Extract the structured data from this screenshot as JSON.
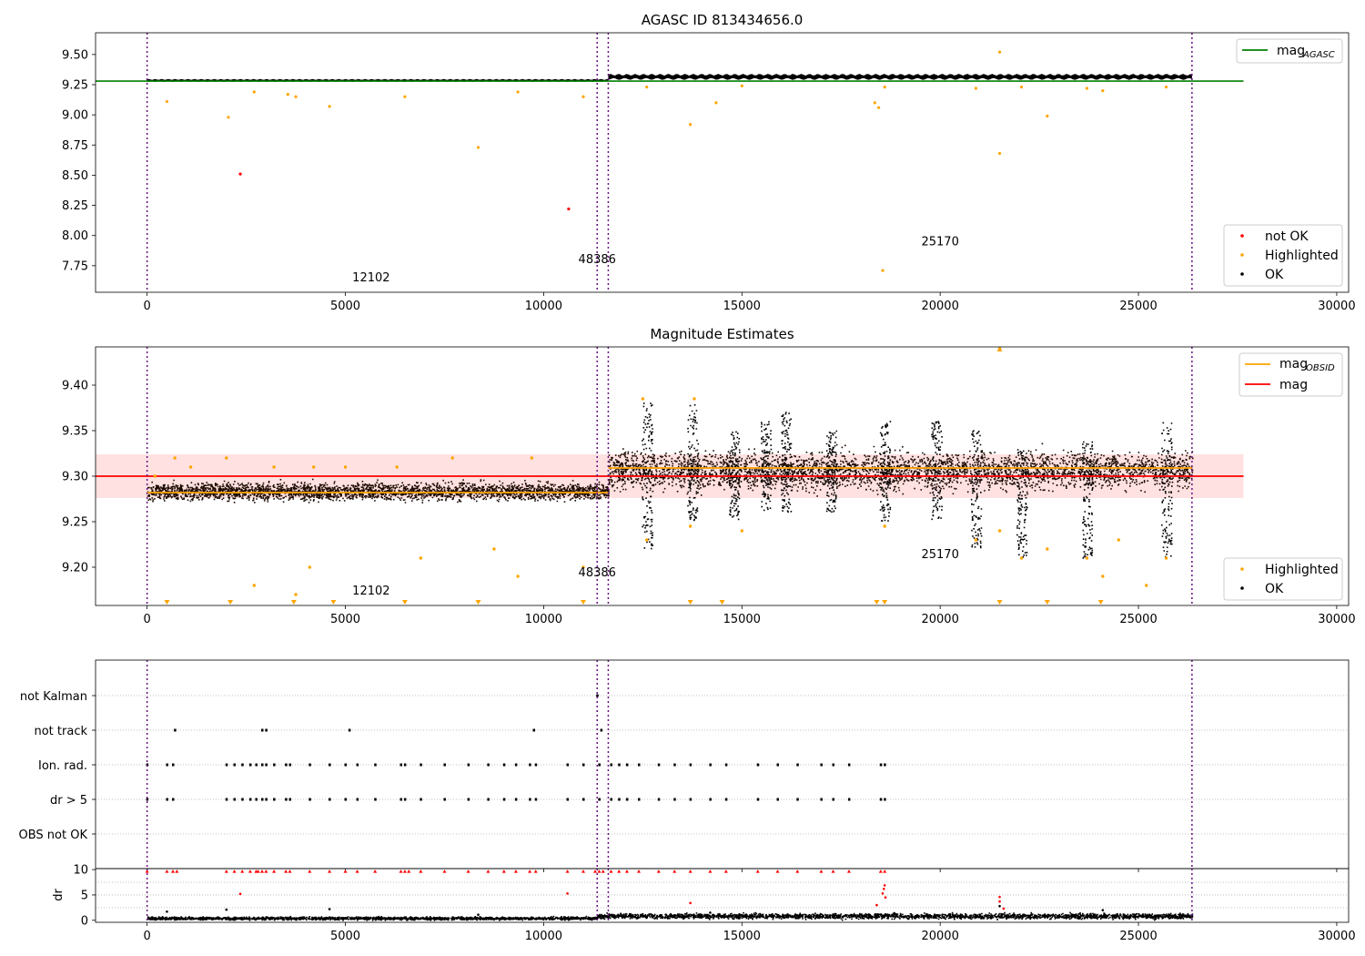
{
  "chart_data": [
    {
      "type": "scatter",
      "title": "AGASC ID 813434656.0",
      "xlim": [
        -1300,
        30300
      ],
      "ylim": [
        7.53,
        9.68
      ],
      "xticks": [
        0,
        5000,
        10000,
        15000,
        20000,
        25000,
        30000
      ],
      "yticks": [
        7.75,
        8.0,
        8.25,
        8.5,
        8.75,
        9.0,
        9.25,
        9.5
      ],
      "ytick_labels": [
        "7.75",
        "8.00",
        "8.25",
        "8.50",
        "8.75",
        "9.00",
        "9.25",
        "9.50"
      ],
      "vlines": [
        0,
        11350,
        11630,
        26350
      ],
      "line_series": [
        {
          "name": "mag_AGASC",
          "label_base": "mag",
          "label_sub": "AGASC",
          "color": "#008000",
          "y": 9.28,
          "x": [
            -1300,
            27650
          ]
        }
      ],
      "bands": [
        {
          "x": [
            0,
            11630
          ],
          "center": 9.285,
          "halfwidth": 0.012,
          "color": "#000000"
        },
        {
          "x": [
            11630,
            26350
          ],
          "center": 9.315,
          "halfwidth": 0.025,
          "color": "#000000"
        }
      ],
      "series": [
        {
          "name": "not OK",
          "color": "#ff0000",
          "points": [
            [
              2350,
              8.51
            ],
            [
              10630,
              8.22
            ]
          ]
        },
        {
          "name": "Highlighted",
          "color": "#ffa500",
          "points": [
            [
              500,
              9.11
            ],
            [
              2050,
              8.98
            ],
            [
              2700,
              9.19
            ],
            [
              3550,
              9.17
            ],
            [
              3750,
              9.15
            ],
            [
              4600,
              9.07
            ],
            [
              6500,
              9.15
            ],
            [
              8350,
              8.73
            ],
            [
              9350,
              9.19
            ],
            [
              11000,
              9.15
            ],
            [
              13700,
              8.92
            ],
            [
              14350,
              9.1
            ],
            [
              18350,
              9.1
            ],
            [
              18450,
              9.06
            ],
            [
              18550,
              7.71
            ],
            [
              21500,
              9.52
            ],
            [
              21500,
              8.68
            ],
            [
              22700,
              8.99
            ],
            [
              24100,
              9.2
            ],
            [
              12600,
              9.23
            ],
            [
              15000,
              9.24
            ],
            [
              18600,
              9.23
            ],
            [
              20900,
              9.22
            ],
            [
              22050,
              9.23
            ],
            [
              23700,
              9.22
            ],
            [
              25700,
              9.23
            ]
          ]
        }
      ],
      "legends": [
        {
          "loc": "upper-right",
          "entries": [
            "mag_AGASC"
          ]
        },
        {
          "loc": "lower-right",
          "entries": [
            "not OK",
            "Highlighted",
            "OK"
          ]
        }
      ],
      "annotations": [
        {
          "text": "12102",
          "x": 5650,
          "y": 7.62
        },
        {
          "text": "48386",
          "x": 11350,
          "y": 7.77
        },
        {
          "text": "25170",
          "x": 20000,
          "y": 7.92
        }
      ]
    },
    {
      "type": "scatter",
      "title": "Magnitude Estimates",
      "xlim": [
        -1300,
        30300
      ],
      "ylim": [
        9.158,
        9.442
      ],
      "xticks": [
        0,
        5000,
        10000,
        15000,
        20000,
        25000,
        30000
      ],
      "yticks": [
        9.2,
        9.25,
        9.3,
        9.35,
        9.4
      ],
      "ytick_labels": [
        "9.20",
        "9.25",
        "9.30",
        "9.35",
        "9.40"
      ],
      "vlines": [
        0,
        11350,
        11630,
        26350
      ],
      "shaded_bands": [
        {
          "x": [
            -1300,
            27650
          ],
          "y": [
            9.276,
            9.324
          ],
          "color": "#ffc8c8"
        }
      ],
      "line_series": [
        {
          "name": "mag",
          "label_base": "mag",
          "label_sub": "",
          "color": "#ff0000",
          "y": 9.3,
          "x": [
            -1300,
            27650
          ]
        },
        {
          "name": "mag_OBSID seg 1",
          "label_base": "mag",
          "label_sub": "OBSID",
          "color": "#ffa500",
          "y": 9.282,
          "x": [
            0,
            11630
          ]
        },
        {
          "name": "mag_OBSID seg 2",
          "color": "#ffa500",
          "y": 9.309,
          "x": [
            11630,
            26350
          ]
        }
      ],
      "bands": [
        {
          "x": [
            0,
            11630
          ],
          "center": 9.283,
          "halfwidth": 0.013,
          "color": "#1a0a00"
        },
        {
          "x": [
            11630,
            26350
          ],
          "center": 9.306,
          "halfwidth": 0.028,
          "color": "#1a0a00"
        }
      ],
      "spikes": [
        {
          "x": 12600,
          "lo": 9.22,
          "hi": 9.38
        },
        {
          "x": 13750,
          "lo": 9.25,
          "hi": 9.38
        },
        {
          "x": 14800,
          "lo": 9.25,
          "hi": 9.35
        },
        {
          "x": 15600,
          "lo": 9.26,
          "hi": 9.36
        },
        {
          "x": 16100,
          "lo": 9.26,
          "hi": 9.37
        },
        {
          "x": 17250,
          "lo": 9.26,
          "hi": 9.35
        },
        {
          "x": 18600,
          "lo": 9.25,
          "hi": 9.36
        },
        {
          "x": 19900,
          "lo": 9.25,
          "hi": 9.36
        },
        {
          "x": 20900,
          "lo": 9.22,
          "hi": 9.35
        },
        {
          "x": 22050,
          "lo": 9.21,
          "hi": 9.33
        },
        {
          "x": 23700,
          "lo": 9.21,
          "hi": 9.34
        },
        {
          "x": 25700,
          "lo": 9.21,
          "hi": 9.36
        }
      ],
      "series": [
        {
          "name": "Highlighted",
          "color": "#ffa500",
          "points": [
            [
              200,
              9.3
            ],
            [
              700,
              9.32
            ],
            [
              1100,
              9.31
            ],
            [
              2000,
              9.32
            ],
            [
              3200,
              9.31
            ],
            [
              4200,
              9.31
            ],
            [
              5000,
              9.31
            ],
            [
              6300,
              9.31
            ],
            [
              7700,
              9.32
            ],
            [
              9700,
              9.32
            ],
            [
              2700,
              9.18
            ],
            [
              3750,
              9.17
            ],
            [
              4100,
              9.2
            ],
            [
              6900,
              9.21
            ],
            [
              8750,
              9.22
            ],
            [
              9350,
              9.19
            ],
            [
              11000,
              9.2
            ],
            [
              12600,
              9.23
            ],
            [
              12500,
              9.385
            ],
            [
              13800,
              9.385
            ],
            [
              13700,
              9.245
            ],
            [
              15000,
              9.24
            ],
            [
              18600,
              9.245
            ],
            [
              20900,
              9.23
            ],
            [
              21500,
              9.24
            ],
            [
              22050,
              9.21
            ],
            [
              22700,
              9.22
            ],
            [
              23700,
              9.21
            ],
            [
              24100,
              9.19
            ],
            [
              24500,
              9.23
            ],
            [
              25200,
              9.18
            ],
            [
              25700,
              9.21
            ],
            [
              21500,
              9.44
            ]
          ]
        }
      ],
      "clipped_markers_x": [
        500,
        2100,
        3700,
        4700,
        6500,
        8350,
        11000,
        13700,
        14500,
        18400,
        18600,
        21500,
        22700,
        24050
      ],
      "legends": [
        {
          "loc": "upper-right",
          "entries": [
            "mag_OBSID",
            "mag"
          ]
        },
        {
          "loc": "lower-right",
          "entries": [
            "Highlighted",
            "OK"
          ]
        }
      ],
      "annotations": [
        {
          "text": "12102",
          "x": 5650,
          "y": 9.17
        },
        {
          "text": "48386",
          "x": 11350,
          "y": 9.19
        },
        {
          "text": "25170",
          "x": 20000,
          "y": 9.21
        }
      ]
    },
    {
      "type": "scatter",
      "title": "",
      "xlim": [
        -1300,
        30300
      ],
      "categories": [
        "OBS not OK",
        "dr > 5",
        "Ion. rad.",
        "not track",
        "not Kalman"
      ],
      "vlines": [
        0,
        11350,
        11630,
        26350
      ],
      "flag_x": {
        "not Kalman": [
          11350
        ],
        "not track": [
          700,
          2900,
          3000,
          5100,
          9750,
          11450
        ],
        "Ion. rad.": [
          0,
          500,
          650,
          2000,
          2200,
          2400,
          2600,
          2750,
          2900,
          3000,
          3200,
          3500,
          3600,
          4100,
          4600,
          5000,
          5300,
          5750,
          6400,
          6500,
          6900,
          7500,
          8100,
          8600,
          9000,
          9300,
          9650,
          9800,
          10600,
          11000,
          11400,
          11700,
          11900,
          12100,
          12400,
          12900,
          13300,
          13700,
          14200,
          14600,
          15400,
          15900,
          16400,
          17000,
          17300,
          17700,
          18500,
          18600
        ],
        "dr > 5": [
          0,
          500,
          650,
          2000,
          2200,
          2400,
          2600,
          2750,
          2900,
          3000,
          3200,
          3500,
          3600,
          4100,
          4600,
          5000,
          5300,
          5750,
          6400,
          6500,
          6900,
          7500,
          8100,
          8600,
          9000,
          9300,
          9650,
          9800,
          10600,
          11000,
          11400,
          11700,
          11900,
          12100,
          12400,
          12900,
          13300,
          13700,
          14200,
          14600,
          15400,
          15900,
          16400,
          17000,
          17300,
          17700,
          18500,
          18600
        ]
      }
    },
    {
      "type": "scatter",
      "title": "",
      "ylabel": "dr",
      "xlim": [
        -1300,
        30300
      ],
      "ylim": [
        -0.4,
        10.2
      ],
      "xticks": [
        0,
        5000,
        10000,
        15000,
        20000,
        25000,
        30000
      ],
      "yticks": [
        0,
        5,
        10
      ],
      "ytick_labels": [
        "0",
        "5",
        "10"
      ],
      "vlines": [
        0,
        11350,
        11630,
        26350
      ],
      "clip_value": 10,
      "clipped_markers_x": [
        0,
        500,
        650,
        750,
        2000,
        2200,
        2400,
        2600,
        2750,
        2800,
        2900,
        3000,
        3200,
        3500,
        3600,
        4100,
        4600,
        5000,
        5300,
        5750,
        6400,
        6500,
        6600,
        6900,
        7500,
        8100,
        8600,
        9000,
        9300,
        9650,
        9800,
        10600,
        11000,
        11300,
        11400,
        11500,
        11700,
        11900,
        12100,
        12400,
        12900,
        13300,
        13700,
        14200,
        14600,
        15400,
        15900,
        16400,
        17000,
        17300,
        17700,
        18500,
        18600
      ],
      "band_segments": [
        {
          "x": [
            0,
            11350
          ],
          "center": 0.35,
          "halfwidth": 0.35
        },
        {
          "x": [
            11350,
            26350
          ],
          "center": 0.8,
          "halfwidth": 0.6
        }
      ],
      "scatter_red": [
        [
          2350,
          5.2
        ],
        [
          10600,
          5.3
        ],
        [
          13700,
          3.4
        ],
        [
          18400,
          3.0
        ],
        [
          18550,
          5.3
        ],
        [
          18580,
          6.2
        ],
        [
          18600,
          6.9
        ],
        [
          18620,
          4.5
        ],
        [
          21500,
          4.6
        ],
        [
          21500,
          3.7
        ],
        [
          21600,
          2.3
        ]
      ],
      "scatter_black": [
        [
          500,
          1.7
        ],
        [
          2000,
          2.1
        ],
        [
          4600,
          2.2
        ],
        [
          8350,
          1.1
        ],
        [
          14200,
          1.5
        ],
        [
          21500,
          2.8
        ],
        [
          24100,
          2.0
        ]
      ]
    }
  ]
}
